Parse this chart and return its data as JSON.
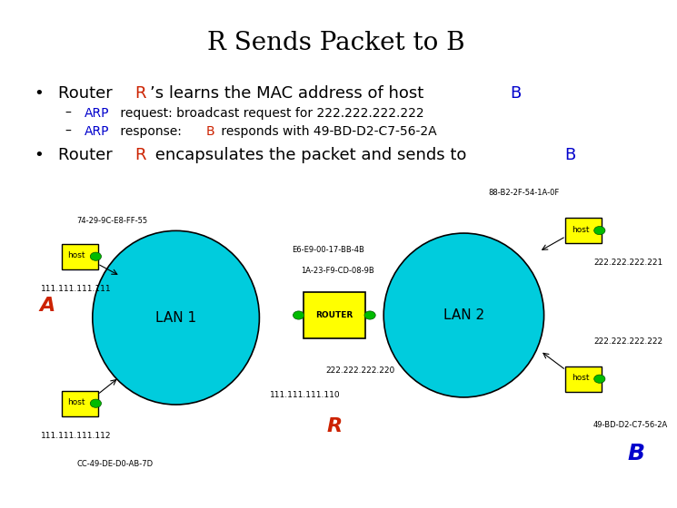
{
  "title": "R Sends Packet to B",
  "background_color": "#ffffff",
  "lan1_color": "#00ccdd",
  "lan2_color": "#00ccdd",
  "router_color": "#ffff00",
  "host_color": "#ffff00",
  "host_border": "#000000",
  "green_dot": "#00bb00",
  "A_color": "#cc2200",
  "R_color": "#cc2200",
  "B_color": "#0000cc",
  "lan1_label": "LAN 1",
  "lan2_label": "LAN 2",
  "router_label": "ROUTER",
  "mac_A_top": "74-29-9C-E8-FF-55",
  "mac_A_bottom": "CC-49-DE-D0-AB-7D",
  "mac_router_left": "E6-E9-00-17-BB-4B",
  "mac_router_right": "1A-23-F9-CD-08-9B",
  "mac_B_top": "88-B2-2F-54-1A-0F",
  "mac_B_bottom": "49-BD-D2-C7-56-2A",
  "ip_A_top": "111.111.111.111",
  "ip_A_bottom": "111.111.111.112",
  "ip_router_left": "111.111.111.110",
  "ip_router_right": "222.222.222.220",
  "ip_B_top": "222.222.222.221",
  "ip_B_bottom": "222.222.222.222"
}
